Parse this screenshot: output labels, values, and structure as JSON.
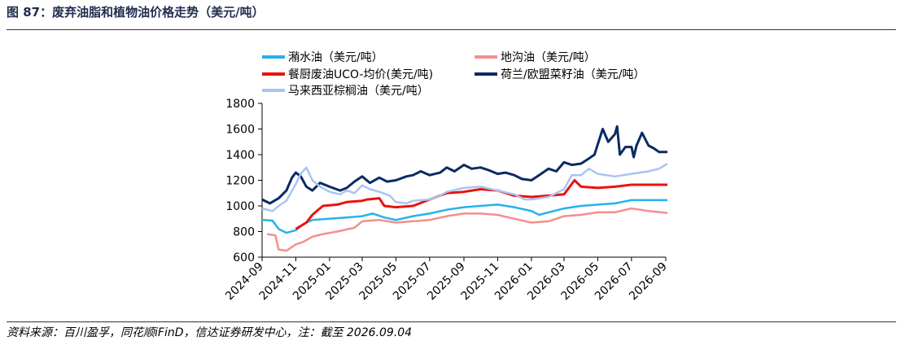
{
  "title": "图 87：废弃油脂和植物油价格走势（美元/吨）",
  "source": "资料来源：百川盈孚，同花顺iFinD，信达证券研发中心，注：截至 2026.09.04",
  "colors": {
    "series_0": "#26b2ea",
    "series_1": "#f48f8c",
    "series_2": "#e8130f",
    "series_3": "#0b2a63",
    "series_4": "#a9c4f2"
  },
  "chart_data": {
    "type": "line",
    "title": "",
    "xlabel": "",
    "ylabel": "",
    "ylim": [
      600,
      1800
    ],
    "yticks": [
      600,
      800,
      1000,
      1200,
      1400,
      1600,
      1800
    ],
    "xlim": [
      "2024-09",
      "2026-09"
    ],
    "xticks": [
      "2024-09",
      "2024-11",
      "2025-01",
      "2025-03",
      "2025-05",
      "2025-07",
      "2025-09",
      "2025-11",
      "2026-01",
      "2026-03",
      "2026-05",
      "2026-07",
      "2026-09"
    ],
    "grid": false,
    "legend_position": "top",
    "series": [
      {
        "name": "潲水油（美元/吨）",
        "color": "#26b2ea",
        "points": [
          [
            "2024-09-01",
            890
          ],
          [
            "2024-09-20",
            885
          ],
          [
            "2024-10-01",
            820
          ],
          [
            "2024-10-15",
            790
          ],
          [
            "2024-11-01",
            810
          ],
          [
            "2024-11-15",
            860
          ],
          [
            "2024-12-01",
            890
          ],
          [
            "2025-01-01",
            900
          ],
          [
            "2025-02-01",
            910
          ],
          [
            "2025-03-01",
            920
          ],
          [
            "2025-03-20",
            940
          ],
          [
            "2025-04-10",
            910
          ],
          [
            "2025-05-01",
            890
          ],
          [
            "2025-06-01",
            920
          ],
          [
            "2025-07-01",
            940
          ],
          [
            "2025-08-01",
            970
          ],
          [
            "2025-09-01",
            990
          ],
          [
            "2025-10-01",
            1000
          ],
          [
            "2025-11-01",
            1010
          ],
          [
            "2025-12-01",
            990
          ],
          [
            "2026-01-01",
            960
          ],
          [
            "2026-01-15",
            930
          ],
          [
            "2026-02-01",
            950
          ],
          [
            "2026-03-01",
            980
          ],
          [
            "2026-04-01",
            1000
          ],
          [
            "2026-05-01",
            1010
          ],
          [
            "2026-06-01",
            1020
          ],
          [
            "2026-07-01",
            1045
          ],
          [
            "2026-08-01",
            1045
          ],
          [
            "2026-09-04",
            1045
          ]
        ]
      },
      {
        "name": "地沟油（美元/吨）",
        "color": "#f48f8c",
        "points": [
          [
            "2024-09-10",
            780
          ],
          [
            "2024-09-25",
            770
          ],
          [
            "2024-10-01",
            660
          ],
          [
            "2024-10-15",
            650
          ],
          [
            "2024-11-01",
            700
          ],
          [
            "2024-11-15",
            720
          ],
          [
            "2024-12-01",
            760
          ],
          [
            "2024-12-20",
            780
          ],
          [
            "2025-01-15",
            800
          ],
          [
            "2025-02-15",
            830
          ],
          [
            "2025-03-01",
            880
          ],
          [
            "2025-04-01",
            890
          ],
          [
            "2025-05-01",
            870
          ],
          [
            "2025-06-01",
            880
          ],
          [
            "2025-07-01",
            890
          ],
          [
            "2025-08-01",
            920
          ],
          [
            "2025-09-01",
            940
          ],
          [
            "2025-10-01",
            940
          ],
          [
            "2025-11-01",
            930
          ],
          [
            "2025-12-01",
            900
          ],
          [
            "2026-01-01",
            870
          ],
          [
            "2026-02-01",
            880
          ],
          [
            "2026-03-01",
            920
          ],
          [
            "2026-04-01",
            930
          ],
          [
            "2026-05-01",
            950
          ],
          [
            "2026-06-01",
            950
          ],
          [
            "2026-07-01",
            980
          ],
          [
            "2026-08-01",
            960
          ],
          [
            "2026-09-04",
            945
          ]
        ]
      },
      {
        "name": "餐厨废油UCO-均价(美元/吨)",
        "color": "#e8130f",
        "points": [
          [
            "2024-11-01",
            820
          ],
          [
            "2024-11-20",
            870
          ],
          [
            "2024-12-01",
            930
          ],
          [
            "2024-12-20",
            1000
          ],
          [
            "2025-01-15",
            1010
          ],
          [
            "2025-02-01",
            1030
          ],
          [
            "2025-03-01",
            1040
          ],
          [
            "2025-03-10",
            1050
          ],
          [
            "2025-04-01",
            1060
          ],
          [
            "2025-04-10",
            1000
          ],
          [
            "2025-05-01",
            990
          ],
          [
            "2025-06-01",
            1000
          ],
          [
            "2025-07-01",
            1050
          ],
          [
            "2025-08-01",
            1100
          ],
          [
            "2025-09-01",
            1110
          ],
          [
            "2025-10-01",
            1130
          ],
          [
            "2025-11-01",
            1120
          ],
          [
            "2025-12-01",
            1080
          ],
          [
            "2026-01-01",
            1070
          ],
          [
            "2026-02-01",
            1080
          ],
          [
            "2026-03-01",
            1090
          ],
          [
            "2026-03-20",
            1200
          ],
          [
            "2026-04-01",
            1150
          ],
          [
            "2026-05-01",
            1140
          ],
          [
            "2026-06-01",
            1150
          ],
          [
            "2026-07-01",
            1165
          ],
          [
            "2026-08-01",
            1165
          ],
          [
            "2026-09-04",
            1165
          ]
        ]
      },
      {
        "name": "荷兰/欧盟菜籽油（美元/吨）",
        "color": "#0b2a63",
        "points": [
          [
            "2024-09-01",
            1050
          ],
          [
            "2024-09-15",
            1020
          ],
          [
            "2024-10-01",
            1060
          ],
          [
            "2024-10-15",
            1120
          ],
          [
            "2024-10-25",
            1220
          ],
          [
            "2024-11-01",
            1260
          ],
          [
            "2024-11-10",
            1230
          ],
          [
            "2024-11-20",
            1150
          ],
          [
            "2024-12-01",
            1120
          ],
          [
            "2024-12-15",
            1180
          ],
          [
            "2025-01-01",
            1150
          ],
          [
            "2025-01-20",
            1120
          ],
          [
            "2025-02-01",
            1140
          ],
          [
            "2025-02-15",
            1190
          ],
          [
            "2025-03-01",
            1230
          ],
          [
            "2025-03-15",
            1180
          ],
          [
            "2025-04-01",
            1220
          ],
          [
            "2025-04-15",
            1190
          ],
          [
            "2025-05-01",
            1200
          ],
          [
            "2025-05-20",
            1230
          ],
          [
            "2025-06-01",
            1240
          ],
          [
            "2025-06-15",
            1270
          ],
          [
            "2025-07-01",
            1240
          ],
          [
            "2025-07-20",
            1260
          ],
          [
            "2025-08-01",
            1300
          ],
          [
            "2025-08-15",
            1270
          ],
          [
            "2025-09-01",
            1320
          ],
          [
            "2025-09-15",
            1290
          ],
          [
            "2025-10-01",
            1300
          ],
          [
            "2025-10-15",
            1280
          ],
          [
            "2025-11-01",
            1250
          ],
          [
            "2025-11-15",
            1260
          ],
          [
            "2025-12-01",
            1240
          ],
          [
            "2025-12-15",
            1210
          ],
          [
            "2026-01-01",
            1200
          ],
          [
            "2026-01-15",
            1240
          ],
          [
            "2026-02-01",
            1290
          ],
          [
            "2026-02-15",
            1270
          ],
          [
            "2026-03-01",
            1340
          ],
          [
            "2026-03-15",
            1320
          ],
          [
            "2026-04-01",
            1330
          ],
          [
            "2026-04-15",
            1370
          ],
          [
            "2026-04-25",
            1400
          ],
          [
            "2026-05-01",
            1480
          ],
          [
            "2026-05-10",
            1600
          ],
          [
            "2026-05-20",
            1500
          ],
          [
            "2026-06-01",
            1560
          ],
          [
            "2026-06-05",
            1620
          ],
          [
            "2026-06-10",
            1400
          ],
          [
            "2026-06-20",
            1460
          ],
          [
            "2026-07-01",
            1460
          ],
          [
            "2026-07-05",
            1380
          ],
          [
            "2026-07-10",
            1470
          ],
          [
            "2026-07-20",
            1570
          ],
          [
            "2026-08-01",
            1470
          ],
          [
            "2026-08-10",
            1450
          ],
          [
            "2026-08-20",
            1420
          ],
          [
            "2026-09-04",
            1420
          ]
        ]
      },
      {
        "name": "马来西亚棕榈油（美元/吨）",
        "color": "#a9c4f2",
        "points": [
          [
            "2024-09-01",
            980
          ],
          [
            "2024-09-20",
            960
          ],
          [
            "2024-10-01",
            1000
          ],
          [
            "2024-10-15",
            1040
          ],
          [
            "2024-11-01",
            1170
          ],
          [
            "2024-11-10",
            1250
          ],
          [
            "2024-11-20",
            1300
          ],
          [
            "2024-12-01",
            1200
          ],
          [
            "2024-12-15",
            1150
          ],
          [
            "2025-01-01",
            1110
          ],
          [
            "2025-01-20",
            1090
          ],
          [
            "2025-02-01",
            1120
          ],
          [
            "2025-02-15",
            1100
          ],
          [
            "2025-03-01",
            1160
          ],
          [
            "2025-03-15",
            1130
          ],
          [
            "2025-04-01",
            1110
          ],
          [
            "2025-04-20",
            1080
          ],
          [
            "2025-05-01",
            1030
          ],
          [
            "2025-05-20",
            1020
          ],
          [
            "2025-06-01",
            1040
          ],
          [
            "2025-07-01",
            1050
          ],
          [
            "2025-07-20",
            1080
          ],
          [
            "2025-08-01",
            1110
          ],
          [
            "2025-09-01",
            1140
          ],
          [
            "2025-10-01",
            1150
          ],
          [
            "2025-11-01",
            1120
          ],
          [
            "2025-12-01",
            1090
          ],
          [
            "2025-12-20",
            1050
          ],
          [
            "2026-01-01",
            1050
          ],
          [
            "2026-02-01",
            1070
          ],
          [
            "2026-03-01",
            1130
          ],
          [
            "2026-03-15",
            1240
          ],
          [
            "2026-04-01",
            1240
          ],
          [
            "2026-04-15",
            1290
          ],
          [
            "2026-05-01",
            1250
          ],
          [
            "2026-06-01",
            1230
          ],
          [
            "2026-07-01",
            1250
          ],
          [
            "2026-08-01",
            1270
          ],
          [
            "2026-08-20",
            1290
          ],
          [
            "2026-09-04",
            1330
          ]
        ]
      }
    ]
  }
}
